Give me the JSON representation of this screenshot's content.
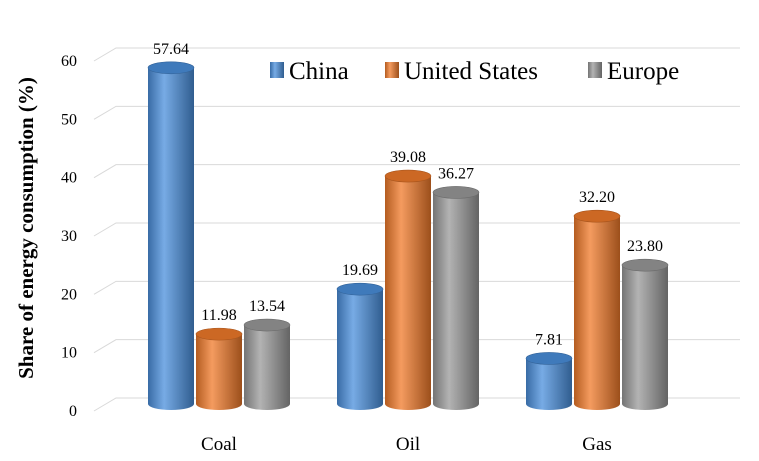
{
  "chart_data": {
    "type": "bar",
    "title": "",
    "xlabel": "",
    "ylabel": "Share of energy consumption (%)",
    "ylim": [
      0,
      60
    ],
    "yticks": [
      0,
      10,
      20,
      30,
      40,
      50,
      60
    ],
    "categories": [
      "Coal",
      "Oil",
      "Gas"
    ],
    "series": [
      {
        "name": "China",
        "color": "#4a8fdc",
        "values": [
          57.64,
          19.69,
          7.81
        ],
        "labels": [
          "57.64",
          "19.69",
          "7.81"
        ]
      },
      {
        "name": "United States",
        "color": "#f07a2a",
        "values": [
          11.98,
          39.08,
          32.2
        ],
        "labels": [
          "11.98",
          "39.08",
          "32.20"
        ]
      },
      {
        "name": "Europe",
        "color": "#9a9a9a",
        "values": [
          13.54,
          36.27,
          23.8
        ],
        "labels": [
          "13.54",
          "36.27",
          "23.80"
        ]
      }
    ],
    "legend_position": "top-right",
    "grid": true,
    "style": "3d-cylinder"
  }
}
